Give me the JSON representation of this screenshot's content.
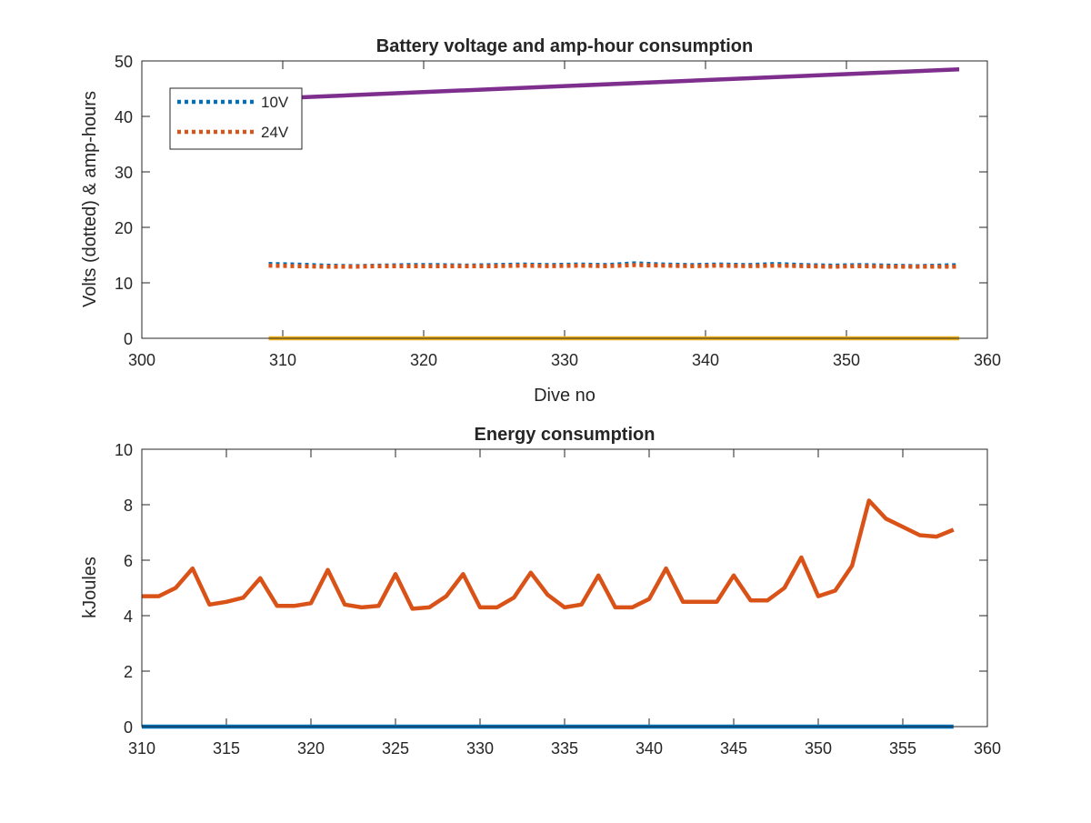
{
  "chart_data": [
    {
      "type": "line",
      "title": "Battery voltage and amp-hour consumption",
      "xlabel": "Dive no",
      "ylabel": "Volts (dotted) & amp-hours",
      "xlim": [
        300,
        360
      ],
      "ylim": [
        0,
        50
      ],
      "xticks": [
        "300",
        "310",
        "320",
        "330",
        "340",
        "350",
        "360"
      ],
      "yticks": [
        "0",
        "10",
        "20",
        "30",
        "40",
        "50"
      ],
      "legend_position": "top-left",
      "series": [
        {
          "name": "10V",
          "style": "dotted",
          "color": "#0072BD",
          "x": [
            309,
            311,
            313,
            315,
            317,
            319,
            321,
            323,
            325,
            327,
            329,
            331,
            333,
            335,
            337,
            339,
            341,
            343,
            345,
            347,
            349,
            351,
            353,
            355,
            358
          ],
          "y": [
            13.4,
            13.3,
            13.1,
            13.0,
            13.1,
            13.2,
            13.2,
            13.1,
            13.2,
            13.3,
            13.2,
            13.3,
            13.2,
            13.5,
            13.3,
            13.2,
            13.3,
            13.2,
            13.4,
            13.2,
            13.1,
            13.2,
            13.1,
            13.0,
            13.2
          ]
        },
        {
          "name": "24V",
          "style": "dotted",
          "color": "#D95319",
          "x": [
            309,
            311,
            313,
            315,
            317,
            319,
            321,
            323,
            325,
            327,
            329,
            331,
            333,
            335,
            337,
            339,
            341,
            343,
            345,
            347,
            349,
            351,
            353,
            355,
            358
          ],
          "y": [
            13.1,
            13.0,
            12.9,
            12.9,
            13.0,
            13.0,
            13.0,
            13.0,
            13.0,
            13.1,
            13.0,
            13.1,
            13.0,
            13.2,
            13.1,
            13.0,
            13.1,
            13.0,
            13.1,
            13.0,
            12.9,
            13.0,
            12.9,
            12.9,
            12.9
          ]
        },
        {
          "style": "solid",
          "color": "#EDB120",
          "x": [
            309,
            358
          ],
          "y": [
            0,
            0
          ]
        },
        {
          "style": "solid",
          "color": "#7E2F8E",
          "x": [
            309,
            358
          ],
          "y": [
            43.2,
            48.5
          ]
        }
      ]
    },
    {
      "type": "line",
      "title": "Energy consumption",
      "xlabel": "",
      "ylabel": "kJoules",
      "xlim": [
        310,
        360
      ],
      "ylim": [
        0,
        10
      ],
      "xticks": [
        "310",
        "315",
        "320",
        "325",
        "330",
        "335",
        "340",
        "345",
        "350",
        "355",
        "360"
      ],
      "yticks": [
        "0",
        "2",
        "4",
        "6",
        "8",
        "10"
      ],
      "series": [
        {
          "style": "solid",
          "color": "#0072BD",
          "x": [
            310,
            358
          ],
          "y": [
            0,
            0
          ]
        },
        {
          "style": "solid",
          "color": "#D95319",
          "x": [
            310,
            311,
            312,
            313,
            314,
            315,
            316,
            317,
            318,
            319,
            320,
            321,
            322,
            323,
            324,
            325,
            326,
            327,
            328,
            329,
            330,
            331,
            332,
            333,
            334,
            335,
            336,
            337,
            338,
            339,
            340,
            341,
            342,
            343,
            344,
            345,
            346,
            347,
            348,
            349,
            350,
            351,
            352,
            353,
            354,
            355,
            356,
            357,
            358
          ],
          "y": [
            4.7,
            4.7,
            5.0,
            5.7,
            4.4,
            4.5,
            4.65,
            5.35,
            4.35,
            4.35,
            4.45,
            5.65,
            4.4,
            4.3,
            4.35,
            5.5,
            4.25,
            4.3,
            4.7,
            5.5,
            4.3,
            4.3,
            4.65,
            5.55,
            4.75,
            4.3,
            4.4,
            5.45,
            4.3,
            4.3,
            4.6,
            5.7,
            4.5,
            4.5,
            4.5,
            5.45,
            4.55,
            4.55,
            5.0,
            6.1,
            4.7,
            4.9,
            5.8,
            8.15,
            7.5,
            7.2,
            6.9,
            6.85,
            7.1
          ]
        }
      ]
    }
  ]
}
